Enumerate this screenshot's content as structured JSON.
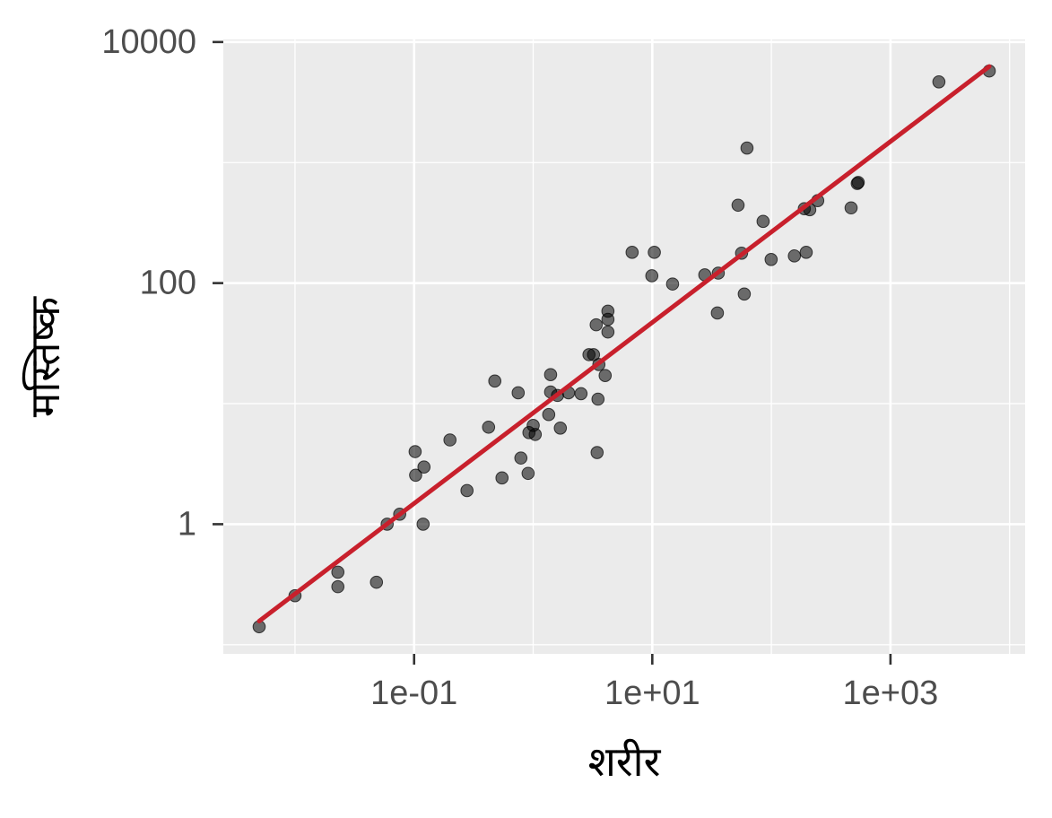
{
  "chart_data": {
    "type": "scatter",
    "xlabel": "शरीर",
    "ylabel": "मस्तिष्क",
    "log_x": true,
    "log_y": true,
    "grid": true,
    "color": "#000000",
    "x": [
      0.005,
      0.01,
      0.0229,
      0.0229,
      0.0483,
      0.0594,
      0.0757,
      0.102,
      0.103,
      0.121,
      0.119,
      0.2,
      0.278,
      0.422,
      0.476,
      0.547,
      0.748,
      0.788,
      0.906,
      0.921,
      1.0,
      1.04,
      1.35,
      1.4,
      1.4,
      1.6,
      1.69,
      1.98,
      2.52,
      2.94,
      3.21,
      3.38,
      3.44,
      3.5,
      3.56,
      4.02,
      4.24,
      4.24,
      4.24,
      6.77,
      9.91,
      10.4,
      14.8,
      27.6,
      35.2,
      35.8,
      52.5,
      56.2,
      59.2,
      62.4,
      85.2,
      99.5,
      156,
      189,
      196,
      210,
      245,
      467,
      526,
      536,
      2550,
      6750
    ],
    "values": [
      0.141,
      0.255,
      0.4,
      0.303,
      0.33,
      1,
      1.21,
      4.0,
      2.55,
      2.98,
      1,
      5.0,
      1.9,
      6.38,
      15.4,
      2.42,
      12.3,
      3.54,
      2.64,
      5.75,
      6.6,
      5.55,
      8.12,
      17.4,
      12.5,
      11.7,
      6.27,
      12.3,
      12.1,
      25.5,
      25.5,
      45.1,
      3.93,
      10.9,
      21.1,
      17.1,
      58.5,
      50.0,
      39.3,
      180,
      115,
      180,
      98.3,
      117,
      56.5,
      121,
      443,
      177,
      81.2,
      1320,
      325,
      157,
      168,
      414,
      180,
      406,
      483,
      421,
      671,
      684,
      4670,
      5750
    ],
    "fit": {
      "color": "#c8202c",
      "x": [
        0.005,
        6750
      ],
      "values": [
        0.157,
        6270
      ]
    },
    "xlim": [
      0.0025,
      13500
    ],
    "ylim": [
      0.084,
      10500
    ],
    "xticks": [
      {
        "value": 0.1,
        "label": "1e-01"
      },
      {
        "value": 10,
        "label": "1e+01"
      },
      {
        "value": 1000,
        "label": "1e+03"
      }
    ],
    "yticks": [
      1,
      100,
      10000
    ]
  }
}
